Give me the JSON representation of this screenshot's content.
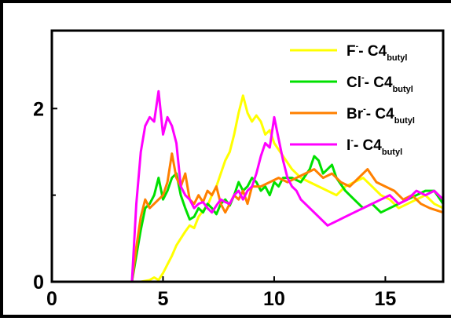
{
  "chart_data": {
    "type": "line",
    "xlim": [
      0,
      17.6
    ],
    "ylim": [
      0,
      2.9
    ],
    "x_ticks": [
      0,
      5,
      10,
      15
    ],
    "y_ticks": [
      0,
      2
    ],
    "y_minor_ticks": [
      1
    ],
    "x_tick_labels": [
      "0",
      "5",
      "10",
      "15"
    ],
    "y_tick_labels": [
      "0",
      "2"
    ],
    "legend_position": "top-right",
    "grid": false,
    "series": [
      {
        "name": "F⁻- C4butyl",
        "legend": {
          "base": "F",
          "sup": "-",
          "mid": "- C4",
          "sub": "butyl"
        },
        "color": "#ffff00",
        "x": [
          0,
          4.0,
          4.4,
          4.6,
          4.8,
          5.0,
          5.2,
          5.4,
          5.6,
          5.8,
          6.0,
          6.2,
          6.4,
          6.6,
          6.8,
          7.0,
          7.2,
          7.4,
          7.6,
          7.8,
          8.0,
          8.2,
          8.4,
          8.6,
          8.8,
          9.0,
          9.2,
          9.4,
          9.6,
          9.8,
          10.0,
          10.4,
          10.8,
          11.2,
          11.6,
          12.0,
          12.4,
          12.8,
          13.2,
          13.6,
          14.0,
          14.4,
          14.8,
          15.2,
          15.6,
          16.0,
          16.4,
          16.8,
          17.2,
          17.6
        ],
        "y": [
          0,
          0,
          0.02,
          0.05,
          0.02,
          0.1,
          0.2,
          0.3,
          0.42,
          0.5,
          0.58,
          0.65,
          0.62,
          0.75,
          0.82,
          0.88,
          1.0,
          1.1,
          1.25,
          1.4,
          1.5,
          1.7,
          1.95,
          2.15,
          1.95,
          1.85,
          1.92,
          1.85,
          1.7,
          1.75,
          1.6,
          1.45,
          1.3,
          1.2,
          1.15,
          1.1,
          1.05,
          1.0,
          1.1,
          1.15,
          1.2,
          1.1,
          1.0,
          0.95,
          0.85,
          0.9,
          0.95,
          1.0,
          0.9,
          0.85
        ]
      },
      {
        "name": "Cl⁻- C4butyl",
        "legend": {
          "base": "Cl",
          "sup": "-",
          "mid": "- C4",
          "sub": "butyl"
        },
        "color": "#00e000",
        "x": [
          0,
          3.6,
          3.8,
          4.0,
          4.2,
          4.4,
          4.6,
          4.8,
          5.0,
          5.2,
          5.4,
          5.6,
          5.8,
          6.0,
          6.2,
          6.4,
          6.6,
          6.8,
          7.0,
          7.2,
          7.4,
          7.6,
          7.8,
          8.0,
          8.2,
          8.4,
          8.6,
          8.8,
          9.0,
          9.2,
          9.4,
          9.6,
          9.8,
          10.0,
          10.2,
          10.4,
          10.8,
          11.2,
          11.6,
          11.8,
          12.0,
          12.2,
          12.4,
          12.6,
          12.8,
          13.2,
          13.6,
          14.0,
          14.4,
          14.8,
          15.2,
          15.6,
          16.0,
          16.4,
          16.8,
          17.2,
          17.6
        ],
        "y": [
          0,
          0,
          0.3,
          0.6,
          0.85,
          0.9,
          1.0,
          1.2,
          0.95,
          1.05,
          1.2,
          1.25,
          1.0,
          0.85,
          0.72,
          0.75,
          0.85,
          0.8,
          0.9,
          0.85,
          0.78,
          0.9,
          0.95,
          0.88,
          1.0,
          1.15,
          1.05,
          1.1,
          1.2,
          1.15,
          1.05,
          1.1,
          1.0,
          1.15,
          1.1,
          1.2,
          1.2,
          1.15,
          1.3,
          1.45,
          1.4,
          1.25,
          1.3,
          1.35,
          1.2,
          1.05,
          0.95,
          0.85,
          0.9,
          0.8,
          0.85,
          0.9,
          0.95,
          1.0,
          1.05,
          1.05,
          0.9
        ]
      },
      {
        "name": "Br⁻- C4butyl",
        "legend": {
          "base": "Br",
          "sup": "-",
          "mid": "- C4",
          "sub": "butyl"
        },
        "color": "#ff8000",
        "x": [
          0,
          3.6,
          3.8,
          4.0,
          4.2,
          4.4,
          4.6,
          4.8,
          5.0,
          5.2,
          5.4,
          5.6,
          5.8,
          6.0,
          6.2,
          6.4,
          6.6,
          6.8,
          7.0,
          7.2,
          7.4,
          7.6,
          7.8,
          8.0,
          8.2,
          8.4,
          8.6,
          8.8,
          9.0,
          9.4,
          9.8,
          10.2,
          10.6,
          11.0,
          11.4,
          11.8,
          12.2,
          12.6,
          13.0,
          13.4,
          13.8,
          14.2,
          14.6,
          15.0,
          15.4,
          15.8,
          16.2,
          16.6,
          17.0,
          17.6
        ],
        "y": [
          0,
          0,
          0.4,
          0.75,
          0.95,
          0.85,
          0.9,
          0.95,
          1.0,
          1.15,
          1.48,
          1.2,
          1.1,
          1.25,
          0.95,
          0.9,
          1.0,
          0.92,
          1.05,
          1.0,
          1.1,
          0.9,
          0.8,
          0.9,
          1.0,
          0.95,
          1.05,
          0.9,
          1.1,
          1.1,
          1.15,
          1.2,
          1.15,
          1.2,
          1.25,
          1.3,
          1.2,
          1.25,
          1.15,
          1.1,
          1.2,
          1.3,
          1.15,
          1.1,
          1.05,
          0.95,
          1.0,
          0.9,
          0.85,
          0.8
        ]
      },
      {
        "name": "I⁻- C4butyl",
        "legend": {
          "base": "I",
          "sup": "-",
          "mid": "- C4",
          "sub": "butyl"
        },
        "color": "#ff00ff",
        "x": [
          0,
          3.6,
          3.8,
          4.0,
          4.2,
          4.4,
          4.6,
          4.8,
          5.0,
          5.2,
          5.4,
          5.6,
          5.8,
          6.0,
          6.2,
          6.4,
          6.6,
          6.8,
          7.0,
          7.2,
          7.4,
          7.6,
          7.8,
          8.0,
          8.2,
          8.4,
          8.6,
          8.8,
          9.0,
          9.2,
          9.4,
          9.6,
          9.8,
          10.0,
          10.2,
          10.4,
          10.6,
          10.8,
          11.0,
          11.2,
          11.6,
          12.0,
          12.4,
          12.8,
          13.2,
          13.6,
          14.0,
          14.4,
          14.8,
          15.2,
          15.6,
          16.0,
          16.4,
          16.8,
          17.2,
          17.6
        ],
        "y": [
          0,
          0,
          0.9,
          1.5,
          1.8,
          1.9,
          1.85,
          2.2,
          1.7,
          1.9,
          1.8,
          1.6,
          1.1,
          1.0,
          0.95,
          0.85,
          0.9,
          0.92,
          0.85,
          0.8,
          0.88,
          0.95,
          0.92,
          0.9,
          1.0,
          1.05,
          0.95,
          1.05,
          1.1,
          1.25,
          1.45,
          1.6,
          1.55,
          1.9,
          1.65,
          1.4,
          1.2,
          1.1,
          1.05,
          0.95,
          0.85,
          0.75,
          0.65,
          0.7,
          0.75,
          0.8,
          0.85,
          0.9,
          0.95,
          1.0,
          0.9,
          0.95,
          1.05,
          1.0,
          1.05,
          0.95
        ]
      }
    ]
  }
}
